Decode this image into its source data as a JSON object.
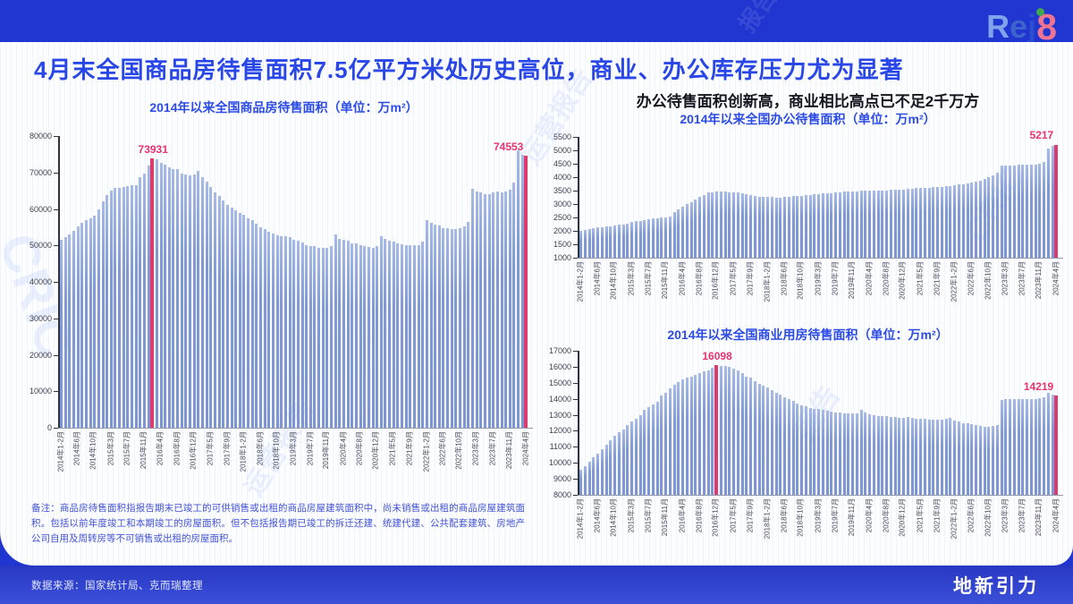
{
  "page": {
    "title": "4月末全国商品房待售面积7.5亿平方米处历史高位，商业、办公库存压力尤为显著",
    "right_header": "办公待售面积创新高，商业相比高点已不足2千万方",
    "note": "备注：商品房待售面积指报告期末已竣工的可供销售或出租的商品房屋建筑面积中，尚未销售或出租的商品房屋建筑面积。包括以前年度竣工和本期竣工的房屋面积。但不包括报告期已竣工的拆迁还建、统建代建、公共配套建筑、房地产公司自用及周转房等不可销售或出租的房屋面积。",
    "footer": {
      "source": "数据来源：国家统计局、克而瑞整理",
      "brand": "地新引力"
    },
    "logo": {
      "text": "Rej8",
      "letters": [
        "R",
        "e",
        "j",
        "8"
      ]
    },
    "watermarks": [
      "CRIC",
      "运营报告",
      "CRIC",
      "运营报告",
      "报告",
      "报告"
    ],
    "colors": {
      "frame_blue": "#2135D1",
      "title_blue": "#2947E6",
      "chart_title_blue": "#2B4BE4",
      "bar_blue": "#8099D5",
      "highlight_pink": "#DD3A6E",
      "value_label_pink": "#E8336E",
      "note_blue": "#4253D4"
    }
  },
  "chart_data": [
    {
      "id": "national",
      "type": "bar",
      "title": "2014年以来全国商品房待售面积（单位：万m²）",
      "unit": "万m²",
      "ylim": [
        0,
        80000
      ],
      "ytick_step": 10000,
      "x_tick_every": 4,
      "x_tick_labels": [
        "2014年1-2月",
        "2014年6月",
        "2014年10月",
        "2015年3月",
        "2015年7月",
        "2015年11月",
        "2016年4月",
        "2016年8月",
        "2016年12月",
        "2017年5月",
        "2017年9月",
        "2018年1-2月",
        "2018年6月",
        "2018年10月",
        "2019年3月",
        "2019年7月",
        "2019年11月",
        "2020年4月",
        "2020年8月",
        "2020年12月",
        "2021年5月",
        "2021年9月",
        "2022年1-2月",
        "2022年6月",
        "2022年10月",
        "2023年3月",
        "2023年7月",
        "2023年11月",
        "2024年4月"
      ],
      "values": [
        51520,
        52280,
        53070,
        54100,
        55180,
        56120,
        56880,
        57480,
        58240,
        59795,
        62169,
        63835,
        64998,
        65681,
        65666,
        65951,
        66259,
        66412,
        66510,
        68632,
        69637,
        71853,
        73931,
        73516,
        72690,
        72169,
        71416,
        70993,
        70870,
        69612,
        69522,
        69095,
        69539,
        70555,
        68810,
        67469,
        66018,
        64577,
        63496,
        62352,
        61140,
        60258,
        59606,
        58923,
        58468,
        57329,
        56838,
        56010,
        55083,
        54428,
        53873,
        53191,
        52789,
        52627,
        52414,
        52251,
        51646,
        51380,
        50928,
        50162,
        49876,
        49784,
        49346,
        49323,
        49221,
        49821,
        52978,
        51779,
        51512,
        51184,
        50662,
        50516,
        50052,
        49707,
        49492,
        49287,
        49850,
        52425,
        51835,
        51380,
        51124,
        50570,
        50427,
        50064,
        50191,
        50092,
        50178,
        51023,
        57026,
        56113,
        55735,
        55433,
        54784,
        54655,
        54605,
        54467,
        54734,
        55203,
        56366,
        65528,
        64770,
        64487,
        64120,
        64159,
        64564,
        64795,
        64537,
        64835,
        65385,
        67295,
        75969,
        74833,
        74553
      ],
      "highlights": [
        {
          "index": 22,
          "label": "73931"
        },
        {
          "index": 112,
          "label": "74553"
        }
      ]
    },
    {
      "id": "office",
      "type": "bar",
      "title": "2014年以来全国办公待售面积（单位：万m²）",
      "unit": "万m²",
      "ylim": [
        1000,
        5500
      ],
      "ytick_step": 500,
      "x_tick_every": 4,
      "x_tick_labels": [
        "2014年1-2月",
        "2014年6月",
        "2014年10月",
        "2015年3月",
        "2015年7月",
        "2015年11月",
        "2016年4月",
        "2016年8月",
        "2016年12月",
        "2017年5月",
        "2017年9月",
        "2018年1-2月",
        "2018年6月",
        "2018年10月",
        "2019年3月",
        "2019年7月",
        "2019年11月",
        "2020年4月",
        "2020年8月",
        "2020年12月",
        "2021年5月",
        "2021年9月",
        "2022年1-2月",
        "2022年6月",
        "2022年10月",
        "2023年3月",
        "2023年7月",
        "2023年11月",
        "2024年4月"
      ],
      "values": [
        1996,
        2034,
        2070,
        2099,
        2121,
        2143,
        2163,
        2180,
        2197,
        2224,
        2245,
        2282,
        2321,
        2355,
        2384,
        2418,
        2440,
        2458,
        2473,
        2492,
        2516,
        2549,
        2700,
        2800,
        2895,
        2990,
        3080,
        3180,
        3270,
        3350,
        3420,
        3450,
        3460,
        3465,
        3460,
        3450,
        3445,
        3435,
        3415,
        3380,
        3330,
        3290,
        3268,
        3256,
        3280,
        3252,
        3246,
        3250,
        3262,
        3274,
        3288,
        3300,
        3315,
        3330,
        3342,
        3360,
        3375,
        3390,
        3405,
        3415,
        3428,
        3440,
        3455,
        3465,
        3475,
        3480,
        3510,
        3500,
        3495,
        3500,
        3505,
        3512,
        3518,
        3524,
        3530,
        3536,
        3545,
        3570,
        3580,
        3590,
        3600,
        3610,
        3618,
        3626,
        3634,
        3645,
        3655,
        3668,
        3690,
        3720,
        3748,
        3770,
        3800,
        3832,
        3870,
        3920,
        3990,
        4070,
        4160,
        4430,
        4440,
        4450,
        4446,
        4452,
        4460,
        4466,
        4462,
        4472,
        4500,
        4580,
        5085,
        5160,
        5217
      ],
      "highlights": [
        {
          "index": 112,
          "label": "5217"
        }
      ]
    },
    {
      "id": "commercial",
      "type": "bar",
      "title": "2014年以来全国商业用房待售面积（单位：万m²）",
      "unit": "万m²",
      "ylim": [
        8000,
        17000
      ],
      "ytick_step": 1000,
      "x_tick_every": 4,
      "x_tick_labels": [
        "2014年1-2月",
        "2014年6月",
        "2014年10月",
        "2015年3月",
        "2015年7月",
        "2015年11月",
        "2016年4月",
        "2016年8月",
        "2016年12月",
        "2017年5月",
        "2017年9月",
        "2018年1-2月",
        "2018年6月",
        "2018年10月",
        "2019年3月",
        "2019年7月",
        "2019年11月",
        "2020年4月",
        "2020年8月",
        "2020年12月",
        "2021年5月",
        "2021年9月",
        "2022年1-2月",
        "2022年6月",
        "2022年10月",
        "2023年3月",
        "2023年7月",
        "2023年11月",
        "2024年4月"
      ],
      "values": [
        9550,
        9810,
        10070,
        10330,
        10600,
        10870,
        11140,
        11410,
        11700,
        11900,
        12100,
        12350,
        12600,
        12780,
        12960,
        13300,
        13470,
        13640,
        13810,
        14200,
        14400,
        14630,
        14900,
        15050,
        15200,
        15300,
        15400,
        15500,
        15600,
        15700,
        15800,
        15930,
        16098,
        16080,
        16060,
        16020,
        15900,
        15750,
        15580,
        15400,
        15300,
        15100,
        14950,
        14800,
        14700,
        14560,
        14400,
        14250,
        14100,
        13980,
        13850,
        13720,
        13600,
        13520,
        13450,
        13380,
        13350,
        13300,
        13250,
        13200,
        13160,
        13130,
        13110,
        13100,
        13090,
        13080,
        13300,
        13150,
        13050,
        12980,
        12950,
        12930,
        12900,
        12880,
        12850,
        12830,
        12820,
        12850,
        12820,
        12780,
        12740,
        12730,
        12720,
        12700,
        12700,
        12710,
        12740,
        12790,
        12640,
        12560,
        12500,
        12450,
        12400,
        12350,
        12300,
        12260,
        12230,
        12280,
        12360,
        13940,
        13960,
        13990,
        13970,
        13960,
        13990,
        14010,
        13980,
        14000,
        14050,
        14110,
        14350,
        14260,
        14219
      ],
      "highlights": [
        {
          "index": 32,
          "label": "16098"
        },
        {
          "index": 112,
          "label": "14219"
        }
      ]
    }
  ]
}
